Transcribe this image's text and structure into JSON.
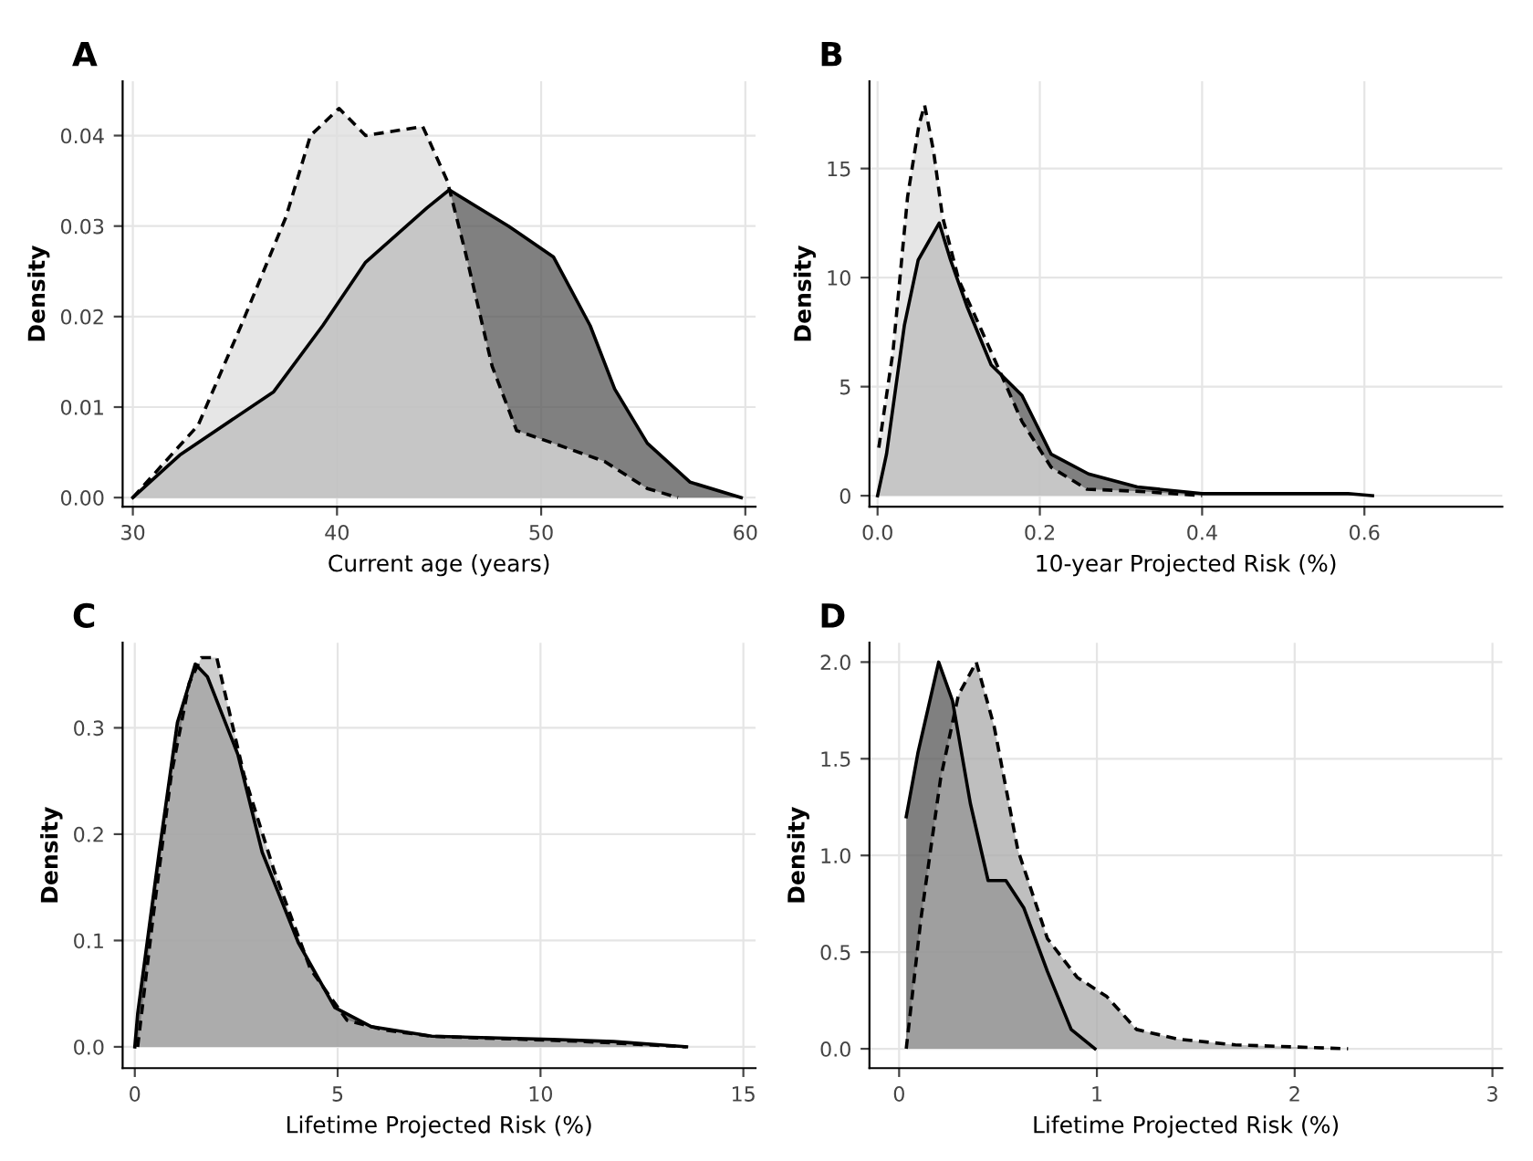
{
  "chart_data": [
    {
      "type": "area",
      "title": "A",
      "xlabel": "Current age (years)",
      "ylabel": "Density",
      "xlim": [
        29.5,
        60.5
      ],
      "xticks": [
        30,
        40,
        50,
        60
      ],
      "ylim": [
        -0.001,
        0.046
      ],
      "yticks": [
        {
          "value": 0,
          "label": "0.00"
        },
        {
          "value": 0.01,
          "label": "0.01"
        },
        {
          "value": 0.02,
          "label": "0.02"
        },
        {
          "value": 0.03,
          "label": "0.03"
        },
        {
          "value": 0.04,
          "label": "0.04"
        }
      ],
      "grid": true,
      "series": [
        {
          "color": "#555555",
          "line_style": "solid",
          "x": [
            30,
            32.3,
            36.9,
            39.3,
            41.4,
            44.4,
            45.5,
            48.4,
            50.6,
            52.4,
            53.6,
            55.2,
            57.3,
            59.8
          ],
          "values": [
            0,
            0.0047,
            0.0117,
            0.019,
            0.026,
            0.032,
            0.034,
            0.03,
            0.0266,
            0.019,
            0.012,
            0.006,
            0.0017,
            0
          ]
        },
        {
          "color": "#dddddd",
          "line_style": "dashed",
          "x": [
            30,
            33.2,
            35.3,
            37.5,
            38.7,
            40.1,
            41.4,
            44.2,
            45.4,
            46.3,
            47.6,
            48.8,
            50.6,
            53.1,
            55.2,
            56.7
          ],
          "values": [
            0,
            0.008,
            0.019,
            0.031,
            0.04,
            0.043,
            0.04,
            0.041,
            0.035,
            0.027,
            0.0145,
            0.0074,
            0.006,
            0.004,
            0.001,
            0
          ]
        }
      ]
    },
    {
      "type": "area",
      "title": "B",
      "xlabel": "10-year Projected Risk (%)",
      "ylabel": "Density",
      "xlim": [
        -0.01,
        0.77
      ],
      "xticks": [
        {
          "value": 0,
          "label": "0.0"
        },
        0.2,
        0.4,
        0.6
      ],
      "ylim": [
        -0.5,
        19
      ],
      "yticks": [
        0,
        5,
        10,
        15
      ],
      "grid": true,
      "series": [
        {
          "color": "#555555",
          "line_style": "solid",
          "x": [
            0,
            0.011,
            0.033,
            0.05,
            0.076,
            0.09,
            0.11,
            0.14,
            0.178,
            0.214,
            0.26,
            0.32,
            0.4,
            0.58,
            0.61
          ],
          "values": [
            0,
            1.9,
            7.8,
            10.8,
            12.5,
            10.8,
            8.7,
            6.0,
            4.6,
            1.9,
            1.0,
            0.4,
            0.1,
            0.1,
            0
          ]
        },
        {
          "color": "#dddddd",
          "line_style": "dashed",
          "x": [
            0.0015,
            0.019,
            0.037,
            0.051,
            0.058,
            0.069,
            0.08,
            0.1,
            0.14,
            0.178,
            0.214,
            0.258,
            0.323,
            0.4
          ],
          "values": [
            2.2,
            6.6,
            13.7,
            17.0,
            17.9,
            15.8,
            12.8,
            9.9,
            6.6,
            3.4,
            1.3,
            0.3,
            0.2,
            0
          ]
        }
      ]
    },
    {
      "type": "area",
      "title": "C",
      "xlabel": "Lifetime Projected Risk (%)",
      "ylabel": "Density",
      "xlim": [
        -0.3,
        15.3
      ],
      "xticks": [
        0,
        5,
        10,
        15
      ],
      "ylim": [
        -0.02,
        0.38
      ],
      "yticks": [
        {
          "value": 0,
          "label": "0.0"
        },
        0.1,
        0.2,
        0.3
      ],
      "grid": true,
      "series": [
        {
          "color": "#555555",
          "line_style": "solid",
          "x": [
            0,
            0.07,
            0.6,
            1.05,
            1.49,
            1.79,
            2.54,
            3.14,
            4.03,
            4.93,
            5.83,
            7.32,
            10.3,
            11.8,
            13.6
          ],
          "values": [
            0,
            0.031,
            0.183,
            0.305,
            0.36,
            0.348,
            0.275,
            0.183,
            0.098,
            0.037,
            0.019,
            0.01,
            0.007,
            0.005,
            0
          ]
        },
        {
          "color": "#bbbbbb",
          "line_style": "dashed",
          "x": [
            0.07,
            0.45,
            0.9,
            1.34,
            1.64,
            2.02,
            2.69,
            3.44,
            4.33,
            5.23,
            6.13,
            7.3,
            11.1,
            13.6
          ],
          "values": [
            0,
            0.122,
            0.256,
            0.342,
            0.366,
            0.366,
            0.256,
            0.165,
            0.073,
            0.025,
            0.016,
            0.01,
            0.005,
            0
          ]
        }
      ]
    },
    {
      "type": "area",
      "title": "D",
      "xlabel": "Lifetime Projected Risk (%)",
      "ylabel": "Density",
      "xlim": [
        -0.15,
        3.05
      ],
      "xticks": [
        0,
        1,
        2,
        3
      ],
      "ylim": [
        -0.1,
        2.1
      ],
      "yticks": [
        {
          "value": 0,
          "label": "0.0"
        },
        0.5,
        {
          "value": 1,
          "label": "1.0"
        },
        1.5,
        {
          "value": 2,
          "label": "2.0"
        }
      ],
      "grid": true,
      "series": [
        {
          "color": "#555555",
          "line_style": "solid",
          "x": [
            0.036,
            0.095,
            0.2,
            0.27,
            0.36,
            0.45,
            0.54,
            0.63,
            0.75,
            0.87,
            0.99
          ],
          "values": [
            1.2,
            1.53,
            2.0,
            1.8,
            1.27,
            0.87,
            0.87,
            0.73,
            0.4,
            0.1,
            0
          ]
        },
        {
          "color": "#aaaaaa",
          "line_style": "dashed",
          "x": [
            0.036,
            0.11,
            0.21,
            0.3,
            0.39,
            0.48,
            0.6,
            0.75,
            0.9,
            1.05,
            1.2,
            1.41,
            1.7,
            2.27
          ],
          "values": [
            0,
            0.67,
            1.4,
            1.83,
            2.0,
            1.67,
            1.03,
            0.57,
            0.37,
            0.27,
            0.1,
            0.05,
            0.02,
            0
          ]
        }
      ]
    }
  ]
}
